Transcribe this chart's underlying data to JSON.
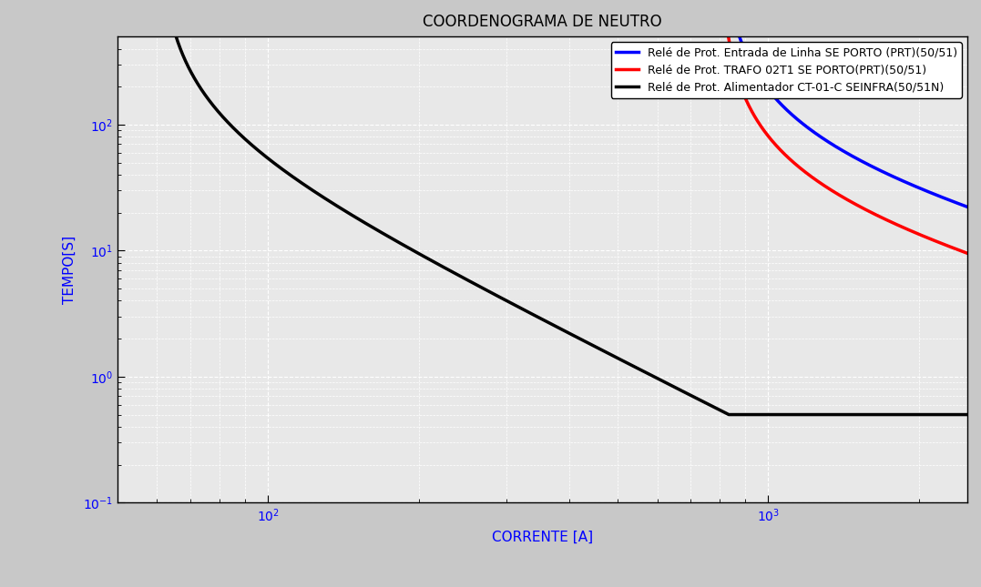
{
  "title": "COORDENOGRAMA DE NEUTRO",
  "xlabel": "CORRENTE [A]",
  "ylabel": "TEMPO[S]",
  "xlim": [
    50,
    2500
  ],
  "ylim": [
    0.1,
    500
  ],
  "background_color": "#c8c8c8",
  "plot_bg_color": "#e8e8e8",
  "grid_color": "#ffffff",
  "legend_labels": [
    "Relé de Prot. Entrada de Linha SE PORTO (PRT)(50/51)",
    "Relé de Prot. TRAFO 02T1 SE PORTO(PRT)(50/51)",
    "Relé de Prot. Alimentador CT-01-C SEINFRA(50/51N)"
  ],
  "legend_colors": [
    "blue",
    "red",
    "black"
  ],
  "curves": {
    "black": {
      "type": "iec_extremely_inverse",
      "Ip": 60,
      "TMS": 1.2,
      "t_min": 0.5,
      "I_start": 61,
      "I_end": 2500,
      "color": "black",
      "linewidth": 2.5
    },
    "blue": {
      "type": "iec_very_inverse",
      "Ip": 800,
      "TMS": 3.5,
      "I_start": 810,
      "I_end": 2500,
      "color": "blue",
      "linewidth": 2.5
    },
    "red": {
      "type": "iec_very_inverse",
      "Ip": 800,
      "TMS": 1.5,
      "I_start": 810,
      "I_end": 2500,
      "color": "red",
      "linewidth": 2.5
    }
  }
}
